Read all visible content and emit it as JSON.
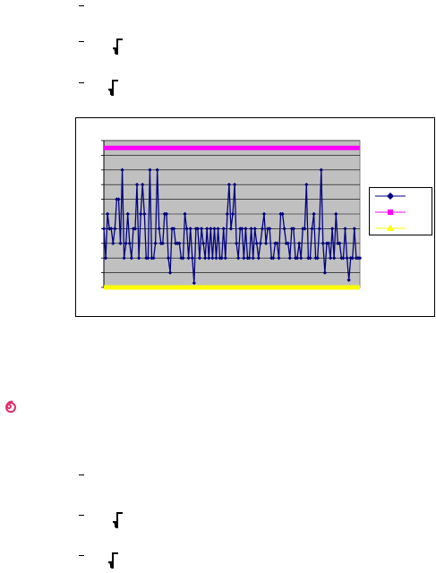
{
  "document": {
    "top_glyphs": [
      "radical-icon",
      "radical-icon"
    ],
    "bottom_glyphs": [
      "radical-icon",
      "radical-icon"
    ],
    "logo_icon": "spiral-icon"
  },
  "colors": {
    "plot_area": "#c0c0c0",
    "series_1": "#000080",
    "series_2": "#ff00ff",
    "series_3": "#ffff00",
    "gridline": "#000000",
    "logo": "#e0306a"
  },
  "chart_data": {
    "type": "line",
    "grid": true,
    "legend_position": "right",
    "ylim": [
      0,
      10
    ],
    "series": [
      {
        "color": "#000080",
        "marker": "diamond",
        "values": [
          4,
          2,
          5,
          4,
          4,
          3,
          4,
          6,
          6,
          3,
          8,
          2,
          3,
          5,
          3,
          2,
          4,
          4,
          7,
          2,
          5,
          7,
          5,
          2,
          2,
          8,
          2,
          2,
          3,
          8,
          4,
          3,
          3,
          5,
          5,
          2,
          1,
          4,
          4,
          3,
          3,
          3,
          2,
          2,
          5,
          4,
          2,
          4,
          2,
          0.3,
          4,
          4,
          2,
          4,
          3,
          2,
          4,
          2,
          4,
          2,
          4,
          2,
          4,
          2,
          2,
          4,
          2,
          5,
          7,
          4,
          5,
          7,
          3,
          2,
          4,
          4,
          2,
          4,
          2,
          2,
          4,
          2,
          4,
          3,
          2,
          3,
          4,
          5,
          3,
          4,
          4,
          2,
          2,
          3,
          3,
          2,
          5,
          5,
          4,
          3,
          3,
          2,
          4,
          4,
          2,
          2,
          3,
          2,
          4,
          4,
          7,
          2,
          2,
          4,
          5,
          2,
          2,
          4,
          8,
          3,
          1,
          3,
          3,
          2,
          4,
          2,
          5,
          3,
          3,
          2,
          2,
          4,
          2,
          0.5,
          2,
          2,
          4,
          2,
          2,
          2
        ],
        "bold_segments": true
      },
      {
        "color": "#ff00ff",
        "marker": "square",
        "values": "constant",
        "level": 9.5
      },
      {
        "color": "#ffff00",
        "marker": "triangle",
        "values": "constant",
        "level": 0
      }
    ]
  }
}
